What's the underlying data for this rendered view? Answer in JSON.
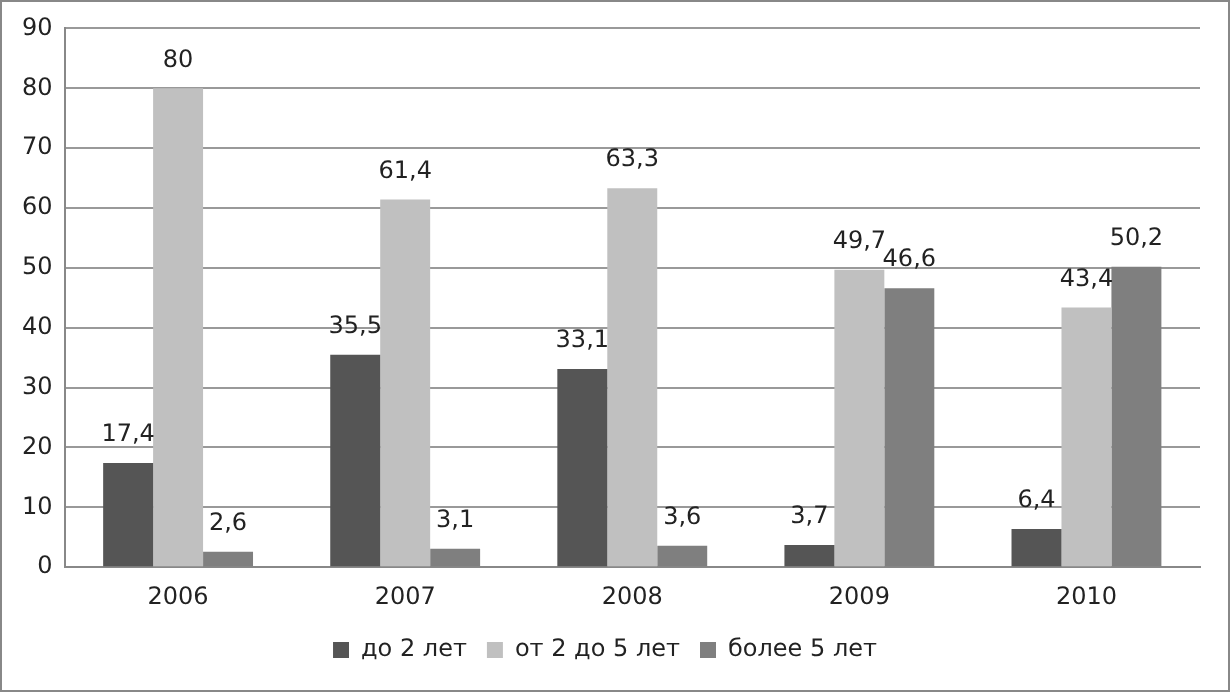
{
  "chart_data": {
    "type": "bar",
    "categories": [
      "2006",
      "2007",
      "2008",
      "2009",
      "2010"
    ],
    "series": [
      {
        "name": "до 2 лет",
        "color": "#555555",
        "values": [
          17.4,
          35.5,
          33.1,
          3.7,
          6.4
        ],
        "value_labels": [
          "17,4",
          "35,5",
          "33,1",
          "3,7",
          "6,4"
        ]
      },
      {
        "name": "от 2 до 5 лет",
        "color": "#c0c0c0",
        "values": [
          80,
          61.4,
          63.3,
          49.7,
          43.4
        ],
        "value_labels": [
          "80",
          "61,4",
          "63,3",
          "49,7",
          "43,4"
        ]
      },
      {
        "name": "более 5 лет",
        "color": "#7f7f7f",
        "values": [
          2.6,
          3.1,
          3.6,
          46.6,
          50.2
        ],
        "value_labels": [
          "2,6",
          "3,1",
          "3,6",
          "46,6",
          "50,2"
        ]
      }
    ],
    "ylim": [
      0,
      90
    ],
    "yticks": [
      0,
      10,
      20,
      30,
      40,
      50,
      60,
      70,
      80,
      90
    ],
    "grid": "y",
    "legend": "bottom"
  }
}
